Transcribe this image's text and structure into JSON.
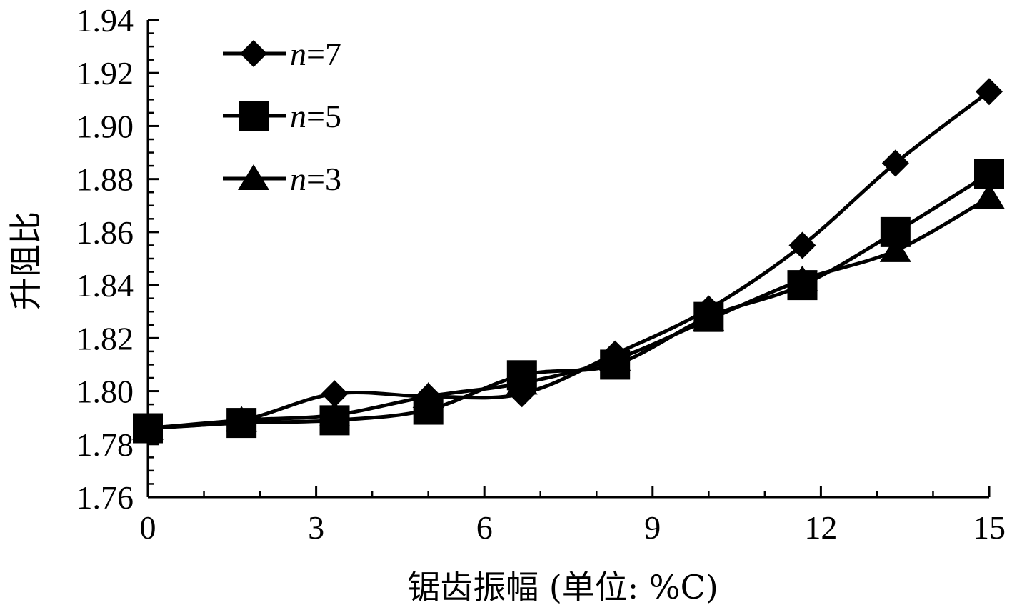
{
  "chart_data": {
    "type": "line",
    "title": "",
    "xlabel": "锯齿振幅 (单位: %C)",
    "ylabel": "升阻比",
    "xlim": [
      0,
      15
    ],
    "ylim": [
      1.76,
      1.94
    ],
    "x_ticks": [
      "0",
      "3",
      "6",
      "9",
      "12",
      "15"
    ],
    "y_ticks": [
      "1.76",
      "1.78",
      "1.80",
      "1.82",
      "1.84",
      "1.86",
      "1.88",
      "1.90",
      "1.92",
      "1.94"
    ],
    "grid": false,
    "legend_position": "top-left",
    "x": [
      0,
      1.67,
      3.33,
      5.0,
      6.67,
      8.33,
      10.0,
      11.67,
      13.33,
      15.0
    ],
    "series": [
      {
        "name": "=7",
        "label_var": "n",
        "marker": "diamond",
        "values": [
          1.786,
          1.789,
          1.799,
          1.798,
          1.799,
          1.814,
          1.831,
          1.855,
          1.886,
          1.913
        ]
      },
      {
        "name": "=5",
        "label_var": "n",
        "marker": "square",
        "values": [
          1.786,
          1.788,
          1.789,
          1.793,
          1.806,
          1.81,
          1.828,
          1.84,
          1.86,
          1.882
        ]
      },
      {
        "name": "=3",
        "label_var": "n",
        "marker": "triangle",
        "values": [
          1.786,
          1.789,
          1.791,
          1.798,
          1.803,
          1.812,
          1.827,
          1.842,
          1.853,
          1.873
        ]
      }
    ],
    "line_color": "#000000",
    "marker_color": "#000000"
  }
}
